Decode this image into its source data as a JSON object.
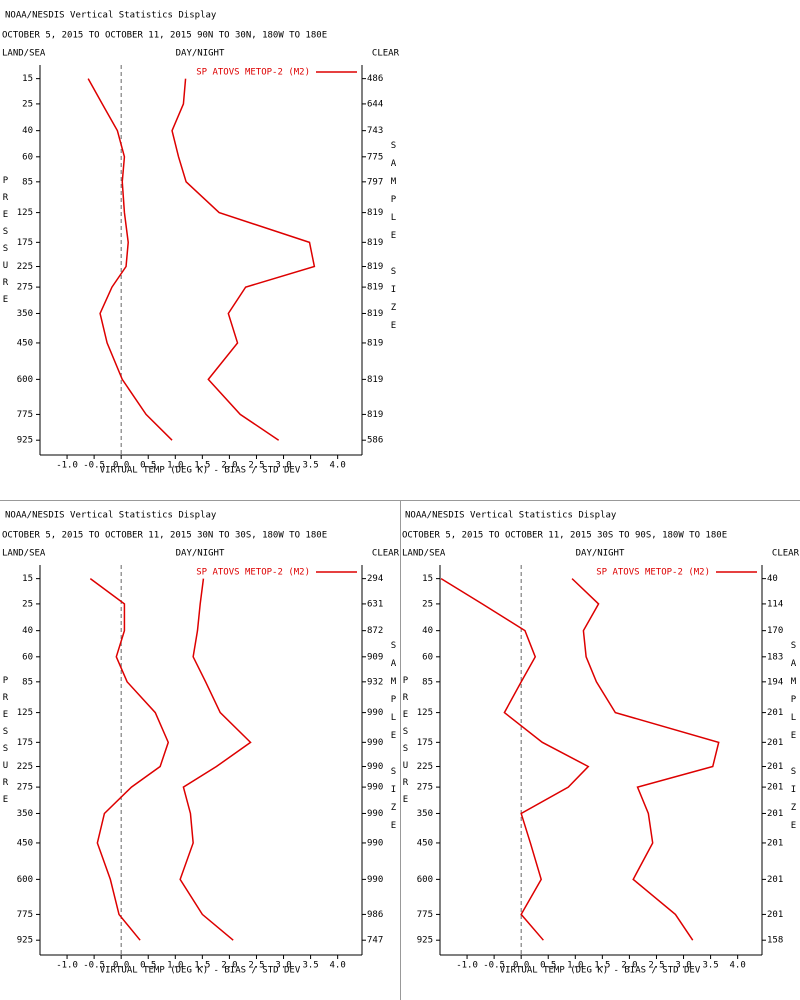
{
  "chart_data": [
    {
      "type": "line",
      "title": "NOAA/NESDIS Vertical Statistics Display",
      "subtitle": "OCTOBER 5, 2015 TO OCTOBER 11, 2015 90N TO 30N, 180W TO 180E",
      "left_label": "LAND/SEA",
      "center_label": "DAY/NIGHT",
      "right_label": "CLEAR",
      "legend": "SP ATOVS METOP-2 (M2)",
      "xlabel": "VIRTUAL TEMP (DEG K) - BIAS / STD DEV",
      "ylabel": "PRESSURE",
      "y2label": "SAMPLE SIZE",
      "xlim": [
        -1.5,
        4.45
      ],
      "xticks": [
        {
          "value": -1,
          "label": "-1.0"
        },
        -0.5,
        {
          "value": 0,
          "label": "0.0"
        },
        0.5,
        {
          "value": 1,
          "label": "1.0"
        },
        1.5,
        {
          "value": 2,
          "label": "2.0"
        },
        2.5,
        {
          "value": 3,
          "label": "3.0"
        },
        3.5,
        {
          "value": 4,
          "label": "4.0"
        }
      ],
      "ylim": [
        1020,
        11
      ],
      "yscale": "power",
      "yexponent": 0.286,
      "yticks": [
        15,
        25,
        40,
        60,
        85,
        125,
        175,
        225,
        275,
        350,
        450,
        600,
        775,
        925
      ],
      "sample_size": [
        486,
        644,
        743,
        775,
        797,
        819,
        819,
        819,
        819,
        819,
        819,
        819,
        819,
        586
      ],
      "zero_line": true,
      "series": [
        {
          "color": "#dd0000",
          "values": [
            -0.61,
            -0.35,
            -0.07,
            0.06,
            0.02,
            0.06,
            0.13,
            0.09,
            -0.17,
            -0.39,
            -0.26,
            0.02,
            0.46,
            0.94
          ]
        },
        {
          "color": "#dd0000",
          "values": [
            1.19,
            1.15,
            0.94,
            1.06,
            1.2,
            1.81,
            3.48,
            3.57,
            2.3,
            1.98,
            2.15,
            1.61,
            2.2,
            2.91
          ]
        }
      ]
    },
    {
      "type": "line",
      "title": "NOAA/NESDIS Vertical Statistics Display",
      "subtitle": "OCTOBER 5, 2015 TO OCTOBER 11, 2015 30N TO 30S, 180W TO 180E",
      "left_label": "LAND/SEA",
      "center_label": "DAY/NIGHT",
      "right_label": "CLEAR",
      "legend": "SP ATOVS METOP-2 (M2)",
      "xlabel": "VIRTUAL TEMP (DEG K) - BIAS / STD DEV",
      "ylabel": "PRESSURE",
      "y2label": "SAMPLE SIZE",
      "xlim": [
        -1.5,
        4.45
      ],
      "xticks": [
        {
          "value": -1,
          "label": "-1.0"
        },
        -0.5,
        {
          "value": 0,
          "label": "0.0"
        },
        0.5,
        {
          "value": 1,
          "label": "1.0"
        },
        1.5,
        {
          "value": 2,
          "label": "2.0"
        },
        2.5,
        {
          "value": 3,
          "label": "3.0"
        },
        3.5,
        {
          "value": 4,
          "label": "4.0"
        }
      ],
      "ylim": [
        1020,
        11
      ],
      "yscale": "power",
      "yexponent": 0.286,
      "yticks": [
        15,
        25,
        40,
        60,
        85,
        125,
        175,
        225,
        275,
        350,
        450,
        600,
        775,
        925
      ],
      "sample_size": [
        294,
        631,
        872,
        909,
        932,
        990,
        990,
        990,
        990,
        990,
        990,
        990,
        986,
        747
      ],
      "zero_line": true,
      "series": [
        {
          "color": "#dd0000",
          "values": [
            -0.57,
            0.06,
            0.06,
            -0.09,
            0.11,
            0.63,
            0.87,
            0.72,
            0.19,
            -0.31,
            -0.44,
            -0.2,
            -0.04,
            0.35
          ]
        },
        {
          "color": "#dd0000",
          "values": [
            1.52,
            1.46,
            1.41,
            1.33,
            1.56,
            1.83,
            2.39,
            1.76,
            1.15,
            1.28,
            1.33,
            1.09,
            1.5,
            2.07
          ]
        }
      ]
    },
    {
      "type": "line",
      "title": "NOAA/NESDIS Vertical Statistics Display",
      "subtitle": "OCTOBER 5, 2015 TO OCTOBER 11, 2015 30S TO 90S, 180W TO 180E",
      "left_label": "LAND/SEA",
      "center_label": "DAY/NIGHT",
      "right_label": "CLEAR",
      "legend": "SP ATOVS METOP-2 (M2)",
      "xlabel": "VIRTUAL TEMP (DEG K) - BIAS / STD DEV",
      "ylabel": "PRESSURE",
      "y2label": "SAMPLE SIZE",
      "xlim": [
        -1.5,
        4.45
      ],
      "xticks": [
        {
          "value": -1,
          "label": "-1.0"
        },
        -0.5,
        {
          "value": 0,
          "label": "0.0"
        },
        0.5,
        {
          "value": 1,
          "label": "1.0"
        },
        1.5,
        {
          "value": 2,
          "label": "2.0"
        },
        2.5,
        {
          "value": 3,
          "label": "3.0"
        },
        3.5,
        {
          "value": 4,
          "label": "4.0"
        }
      ],
      "ylim": [
        1020,
        11
      ],
      "yscale": "power",
      "yexponent": 0.286,
      "yticks": [
        15,
        25,
        40,
        60,
        85,
        125,
        175,
        225,
        275,
        350,
        450,
        600,
        775,
        925
      ],
      "sample_size": [
        40,
        114,
        170,
        183,
        194,
        201,
        201,
        201,
        201,
        201,
        201,
        201,
        201,
        158
      ],
      "zero_line": true,
      "series": [
        {
          "color": "#dd0000",
          "values": [
            -1.48,
            -0.72,
            0.07,
            0.26,
            0,
            -0.31,
            0.39,
            1.24,
            0.87,
            0,
            0.17,
            0.37,
            0,
            0.41
          ]
        },
        {
          "color": "#dd0000",
          "values": [
            0.94,
            1.43,
            1.15,
            1.2,
            1.39,
            1.74,
            3.65,
            3.54,
            2.15,
            2.35,
            2.43,
            2.07,
            2.85,
            3.17
          ]
        }
      ]
    }
  ]
}
